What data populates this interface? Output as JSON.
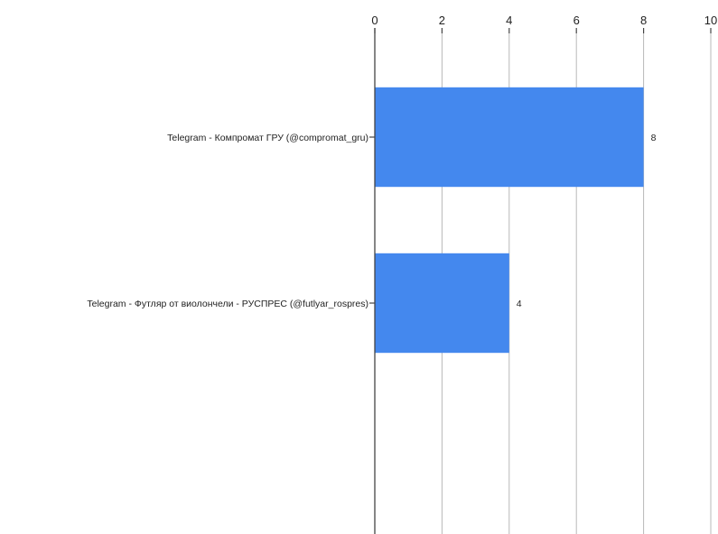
{
  "chart_data": {
    "type": "bar",
    "orientation": "horizontal",
    "categories": [
      "Telegram - Компромат ГРУ (@compromat_gru)",
      "Telegram - Футляр от виолончели - РУСПРЕС (@futlyar_rospres)"
    ],
    "values": [
      8,
      4
    ],
    "data_labels": [
      "8",
      "4"
    ],
    "xlim": [
      0,
      10
    ],
    "x_ticks": [
      0,
      2,
      4,
      6,
      8,
      10
    ],
    "x_tick_labels": [
      "0",
      "2",
      "4",
      "6",
      "8",
      "10"
    ],
    "x_axis_position": "top",
    "grid": true,
    "legend": "none",
    "bar_color": "#4488ee"
  }
}
